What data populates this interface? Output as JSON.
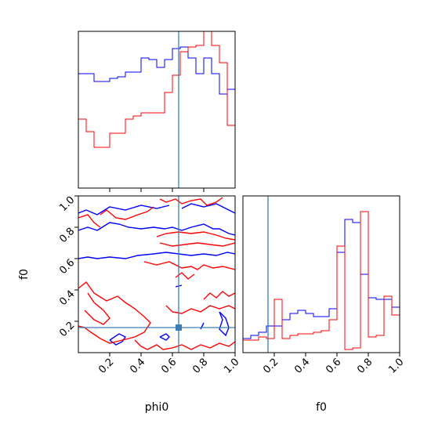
{
  "chart_data": [
    {
      "panel": "phi0-marginal",
      "type": "histogram",
      "xlim": [
        0,
        1
      ],
      "truth": 0.64,
      "bins": 20,
      "series": [
        {
          "color": "#0000ff",
          "values": [
            0.73,
            0.73,
            0.68,
            0.68,
            0.7,
            0.71,
            0.74,
            0.74,
            0.83,
            0.82,
            0.77,
            0.82,
            0.89,
            0.9,
            0.83,
            0.73,
            0.83,
            0.73,
            0.6,
            0.63
          ]
        },
        {
          "color": "#ff0000",
          "values": [
            0.44,
            0.36,
            0.26,
            0.26,
            0.35,
            0.35,
            0.44,
            0.46,
            0.48,
            0.48,
            0.48,
            0.61,
            0.72,
            0.87,
            0.9,
            0.91,
            1.0,
            0.91,
            0.8,
            0.4
          ]
        }
      ]
    },
    {
      "panel": "f0-marginal",
      "type": "histogram",
      "xlim": [
        0,
        1
      ],
      "truth": 0.16,
      "bins": 20,
      "series": [
        {
          "color": "#0000ff",
          "values": [
            0.09,
            0.11,
            0.13,
            0.17,
            0.17,
            0.21,
            0.25,
            0.27,
            0.25,
            0.23,
            0.23,
            0.28,
            0.64,
            0.85,
            0.83,
            0.5,
            0.35,
            0.34,
            0.34,
            0.29
          ]
        },
        {
          "color": "#ff0000",
          "values": [
            0.08,
            0.08,
            0.1,
            0.09,
            0.34,
            0.09,
            0.11,
            0.12,
            0.12,
            0.13,
            0.14,
            0.21,
            0.68,
            0.02,
            0.03,
            0.9,
            0.1,
            0.11,
            0.36,
            0.24
          ]
        }
      ]
    },
    {
      "panel": "phi0-f0-contours",
      "type": "contour",
      "xlabel": "phi0",
      "ylabel": "f0",
      "xlim": [
        0,
        1
      ],
      "ylim": [
        0,
        1
      ],
      "xticks": [
        "0.2",
        "0.4",
        "0.6",
        "0.8",
        "1.0"
      ],
      "yticks": [
        "0.2",
        "0.4",
        "0.6",
        "0.8",
        "1.0"
      ],
      "truth": {
        "x": 0.64,
        "y": 0.16
      },
      "contours": [
        {
          "color": "#0000ff",
          "points": [
            [
              0.0,
              0.78
            ],
            [
              0.06,
              0.8
            ],
            [
              0.12,
              0.78
            ],
            [
              0.2,
              0.83
            ],
            [
              0.26,
              0.82
            ],
            [
              0.32,
              0.8
            ],
            [
              0.4,
              0.79
            ],
            [
              0.48,
              0.8
            ],
            [
              0.55,
              0.79
            ],
            [
              0.6,
              0.8
            ],
            [
              0.66,
              0.78
            ],
            [
              0.72,
              0.8
            ],
            [
              0.8,
              0.82
            ],
            [
              0.86,
              0.79
            ],
            [
              0.9,
              0.79
            ],
            [
              0.96,
              0.76
            ],
            [
              1.0,
              0.75
            ]
          ]
        },
        {
          "color": "#0000ff",
          "points": [
            [
              0.0,
              0.6
            ],
            [
              0.06,
              0.61
            ],
            [
              0.12,
              0.6
            ],
            [
              0.2,
              0.61
            ],
            [
              0.3,
              0.6
            ],
            [
              0.38,
              0.62
            ],
            [
              0.48,
              0.63
            ],
            [
              0.56,
              0.64
            ],
            [
              0.64,
              0.63
            ],
            [
              0.72,
              0.62
            ],
            [
              0.8,
              0.63
            ],
            [
              0.88,
              0.62
            ],
            [
              0.95,
              0.64
            ],
            [
              1.0,
              0.63
            ]
          ]
        },
        {
          "color": "#0000ff",
          "points": [
            [
              0.0,
              0.89
            ],
            [
              0.05,
              0.91
            ],
            [
              0.12,
              0.88
            ],
            [
              0.2,
              0.93
            ],
            [
              0.3,
              0.91
            ],
            [
              0.4,
              0.94
            ],
            [
              0.5,
              0.92
            ],
            [
              0.58,
              0.94
            ]
          ]
        },
        {
          "color": "#0000ff",
          "points": [
            [
              0.66,
              0.92
            ],
            [
              0.72,
              0.95
            ],
            [
              0.8,
              0.93
            ],
            [
              0.88,
              0.95
            ],
            [
              0.96,
              0.91
            ],
            [
              1.0,
              0.89
            ]
          ]
        },
        {
          "color": "#0000ff",
          "points": [
            [
              0.2,
              0.08
            ],
            [
              0.24,
              0.05
            ],
            [
              0.28,
              0.07
            ],
            [
              0.3,
              0.1
            ],
            [
              0.26,
              0.12
            ],
            [
              0.2,
              0.08
            ]
          ]
        },
        {
          "color": "#0000ff",
          "points": [
            [
              0.52,
              0.1
            ],
            [
              0.56,
              0.12
            ],
            [
              0.58,
              0.1
            ],
            [
              0.56,
              0.08
            ],
            [
              0.52,
              0.1
            ]
          ]
        },
        {
          "color": "#0000ff",
          "points": [
            [
              0.9,
              0.26
            ],
            [
              0.94,
              0.22
            ],
            [
              0.96,
              0.16
            ],
            [
              0.94,
              0.11
            ],
            [
              0.9,
              0.15
            ],
            [
              0.92,
              0.21
            ],
            [
              0.9,
              0.26
            ]
          ]
        },
        {
          "color": "#0000ff",
          "points": [
            [
              0.62,
              0.42
            ],
            [
              0.66,
              0.43
            ]
          ]
        },
        {
          "color": "#0000ff",
          "points": [
            [
              0.78,
              0.15
            ],
            [
              0.8,
              0.19
            ]
          ]
        },
        {
          "color": "#ff0000",
          "points": [
            [
              0.0,
              0.41
            ],
            [
              0.05,
              0.45
            ],
            [
              0.1,
              0.38
            ],
            [
              0.18,
              0.33
            ],
            [
              0.25,
              0.36
            ],
            [
              0.3,
              0.32
            ],
            [
              0.36,
              0.28
            ],
            [
              0.42,
              0.23
            ],
            [
              0.46,
              0.19
            ],
            [
              0.42,
              0.13
            ],
            [
              0.36,
              0.1
            ],
            [
              0.28,
              0.08
            ],
            [
              0.2,
              0.06
            ],
            [
              0.14,
              0.09
            ],
            [
              0.08,
              0.13
            ],
            [
              0.04,
              0.16
            ],
            [
              0.0,
              0.17
            ]
          ]
        },
        {
          "color": "#ff0000",
          "points": [
            [
              0.06,
              0.38
            ],
            [
              0.1,
              0.32
            ],
            [
              0.16,
              0.27
            ],
            [
              0.2,
              0.22
            ],
            [
              0.16,
              0.18
            ],
            [
              0.1,
              0.21
            ],
            [
              0.04,
              0.27
            ]
          ]
        },
        {
          "color": "#ff0000",
          "points": [
            [
              0.14,
              0.88
            ],
            [
              0.18,
              0.91
            ],
            [
              0.24,
              0.86
            ],
            [
              0.3,
              0.85
            ],
            [
              0.38,
              0.88
            ],
            [
              0.44,
              0.9
            ],
            [
              0.48,
              0.93
            ]
          ]
        },
        {
          "color": "#ff0000",
          "points": [
            [
              0.0,
              0.86
            ],
            [
              0.06,
              0.88
            ],
            [
              0.1,
              0.83
            ],
            [
              0.14,
              0.8
            ]
          ]
        },
        {
          "color": "#ff0000",
          "points": [
            [
              0.52,
              0.98
            ],
            [
              0.56,
              0.96
            ],
            [
              0.62,
              0.98
            ],
            [
              0.66,
              0.95
            ],
            [
              0.72,
              0.97
            ],
            [
              0.78,
              0.98
            ],
            [
              0.82,
              0.94
            ],
            [
              0.88,
              0.96
            ],
            [
              0.92,
              0.99
            ]
          ]
        },
        {
          "color": "#ff0000",
          "points": [
            [
              0.5,
              0.74
            ],
            [
              0.56,
              0.76
            ],
            [
              0.64,
              0.77
            ],
            [
              0.72,
              0.76
            ],
            [
              0.8,
              0.77
            ],
            [
              0.88,
              0.75
            ],
            [
              0.94,
              0.73
            ],
            [
              1.0,
              0.72
            ]
          ]
        },
        {
          "color": "#ff0000",
          "points": [
            [
              0.52,
              0.7
            ],
            [
              0.6,
              0.68
            ],
            [
              0.68,
              0.69
            ],
            [
              0.76,
              0.7
            ],
            [
              0.84,
              0.69
            ],
            [
              0.92,
              0.68
            ],
            [
              1.0,
              0.7
            ]
          ]
        },
        {
          "color": "#ff0000",
          "points": [
            [
              0.42,
              0.58
            ],
            [
              0.5,
              0.56
            ],
            [
              0.58,
              0.58
            ],
            [
              0.66,
              0.54
            ],
            [
              0.72,
              0.55
            ],
            [
              0.76,
              0.53
            ],
            [
              0.8,
              0.56
            ],
            [
              0.86,
              0.54
            ],
            [
              0.92,
              0.55
            ],
            [
              1.0,
              0.53
            ]
          ]
        },
        {
          "color": "#ff0000",
          "points": [
            [
              0.62,
              0.48
            ],
            [
              0.66,
              0.51
            ],
            [
              0.7,
              0.47
            ],
            [
              0.74,
              0.5
            ]
          ]
        },
        {
          "color": "#ff0000",
          "points": [
            [
              0.56,
              0.3
            ],
            [
              0.6,
              0.26
            ],
            [
              0.66,
              0.25
            ],
            [
              0.72,
              0.28
            ],
            [
              0.78,
              0.26
            ],
            [
              0.84,
              0.3
            ],
            [
              0.9,
              0.28
            ],
            [
              0.96,
              0.3
            ],
            [
              1.0,
              0.28
            ]
          ]
        },
        {
          "color": "#ff0000",
          "points": [
            [
              0.36,
              0.08
            ],
            [
              0.4,
              0.04
            ],
            [
              0.44,
              0.02
            ],
            [
              0.5,
              0.05
            ],
            [
              0.54,
              0.02
            ],
            [
              0.6,
              0.03
            ],
            [
              0.66,
              0.05
            ],
            [
              0.72,
              0.02
            ],
            [
              0.78,
              0.05
            ],
            [
              0.84,
              0.03
            ],
            [
              0.9,
              0.06
            ],
            [
              0.96,
              0.04
            ],
            [
              1.0,
              0.07
            ]
          ]
        },
        {
          "color": "#ff0000",
          "points": [
            [
              0.8,
              0.34
            ],
            [
              0.84,
              0.38
            ],
            [
              0.88,
              0.35
            ],
            [
              0.92,
              0.39
            ],
            [
              0.96,
              0.36
            ],
            [
              1.0,
              0.38
            ]
          ]
        }
      ]
    }
  ],
  "axis_labels": {
    "x_left": "phi0",
    "x_right": "f0",
    "y_left": "f0"
  }
}
